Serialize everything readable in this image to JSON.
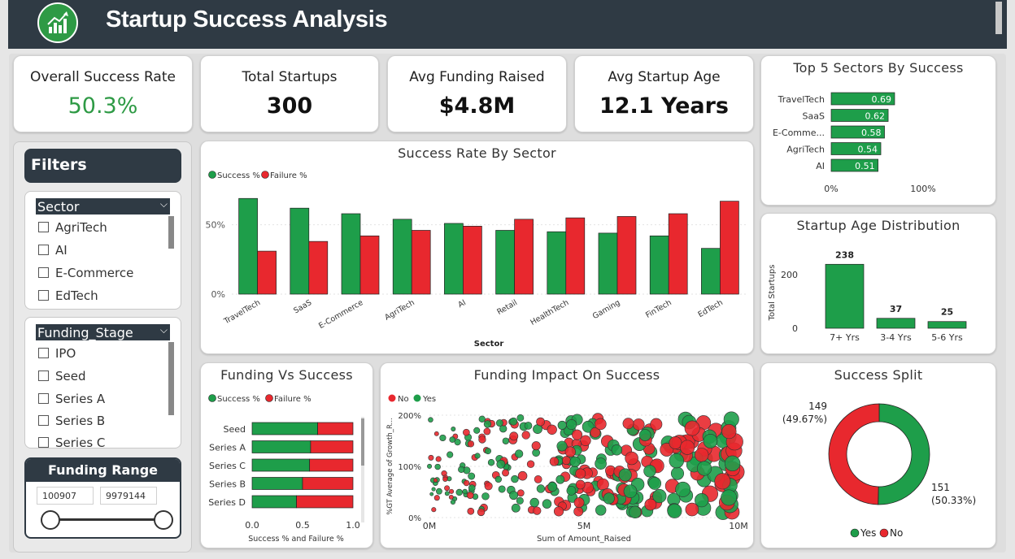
{
  "header": {
    "title": "Startup Success Analysis",
    "logo_icon": "bar-chart-icon"
  },
  "kpis": [
    {
      "label": "Overall Success Rate",
      "value": "50.3%",
      "color": "#2e9a45"
    },
    {
      "label": "Total Startups",
      "value": "300"
    },
    {
      "label": "Avg Funding Raised",
      "value": "$4.8M"
    },
    {
      "label": "Avg Startup Age",
      "value": "12.1 Years"
    }
  ],
  "filters": {
    "title": "Filters",
    "sector": {
      "label": "Sector",
      "items": [
        "AgriTech",
        "AI",
        "E-Commerce",
        "EdTech"
      ]
    },
    "funding_stage": {
      "label": "Funding_Stage",
      "items": [
        "IPO",
        "Seed",
        "Series A",
        "Series B",
        "Series C"
      ]
    },
    "funding_range": {
      "label": "Funding Range",
      "min": "100907",
      "max": "9979144"
    }
  },
  "colors": {
    "success": "#1e9e4a",
    "failure": "#e8282e",
    "header": "#2f3a44"
  },
  "chart_data": [
    {
      "id": "success_by_sector",
      "type": "bar",
      "title": "Success Rate By Sector",
      "xlabel": "Sector",
      "ylabel": "",
      "legend": "top-left",
      "ylim": [
        0,
        0.75
      ],
      "yticks": [
        "0%",
        "50%"
      ],
      "categories": [
        "TravelTech",
        "SaaS",
        "E-Commerce",
        "AgriTech",
        "AI",
        "Retail",
        "HealthTech",
        "Gaming",
        "FinTech",
        "EdTech"
      ],
      "series": [
        {
          "name": "Success %",
          "values": [
            0.69,
            0.62,
            0.58,
            0.54,
            0.51,
            0.46,
            0.45,
            0.44,
            0.42,
            0.33
          ]
        },
        {
          "name": "Failure %",
          "values": [
            0.31,
            0.38,
            0.42,
            0.46,
            0.49,
            0.54,
            0.55,
            0.56,
            0.58,
            0.67
          ]
        }
      ]
    },
    {
      "id": "top5_sectors",
      "type": "bar",
      "title": "Top 5 Sectors By Success",
      "orientation": "horizontal",
      "categories": [
        "TravelTech",
        "SaaS",
        "E-Comme...",
        "AgriTech",
        "AI"
      ],
      "values": [
        0.69,
        0.62,
        0.58,
        0.54,
        0.51
      ],
      "data_labels": [
        "0.69",
        "0.62",
        "0.58",
        "0.54",
        "0.51"
      ],
      "xticks": [
        "0%",
        "100%"
      ],
      "xlim": [
        0,
        1
      ]
    },
    {
      "id": "age_distribution",
      "type": "bar",
      "title": "Startup Age Distribution",
      "ylabel": "Total Startups",
      "categories": [
        "7+ Yrs",
        "3-4 Yrs",
        "5-6 Yrs"
      ],
      "values": [
        238,
        37,
        25
      ],
      "yticks": [
        "0",
        "200"
      ],
      "ylim": [
        0,
        260
      ]
    },
    {
      "id": "funding_vs_success",
      "type": "bar",
      "title": "Funding Vs Success",
      "orientation": "horizontal",
      "stacked": true,
      "xlabel": "Success % and Failure %",
      "legend": "top-left",
      "categories": [
        "Seed",
        "Series A",
        "Series C",
        "Series B",
        "Series D"
      ],
      "series": [
        {
          "name": "Success %",
          "values": [
            0.65,
            0.58,
            0.57,
            0.5,
            0.44
          ]
        },
        {
          "name": "Failure %",
          "values": [
            0.35,
            0.42,
            0.43,
            0.5,
            0.56
          ]
        }
      ],
      "xticks": [
        "0.0",
        "0.5",
        "1.0"
      ],
      "xlim": [
        0,
        1
      ]
    },
    {
      "id": "funding_impact",
      "type": "scatter",
      "title": "Funding Impact On Success",
      "xlabel": "Sum of Amount_Raised",
      "ylabel": "%GT Average of Growth_R...",
      "legend": "top-left",
      "legend_entries": [
        "No",
        "Yes"
      ],
      "xticks": [
        "0M",
        "5M",
        "10M"
      ],
      "yticks": [
        "0%",
        "100%",
        "200%"
      ],
      "xlim": [
        0,
        10
      ],
      "ylim": [
        0,
        2
      ]
    },
    {
      "id": "success_split",
      "type": "pie",
      "title": "Success Split",
      "donut": true,
      "legend": "bottom",
      "slices": [
        {
          "name": "Yes",
          "value": 151,
          "percent": "50.33%",
          "label": "151",
          "pct_label": "(50.33%)"
        },
        {
          "name": "No",
          "value": 149,
          "percent": "49.67%",
          "label": "149",
          "pct_label": "(49.67%)"
        }
      ]
    }
  ]
}
